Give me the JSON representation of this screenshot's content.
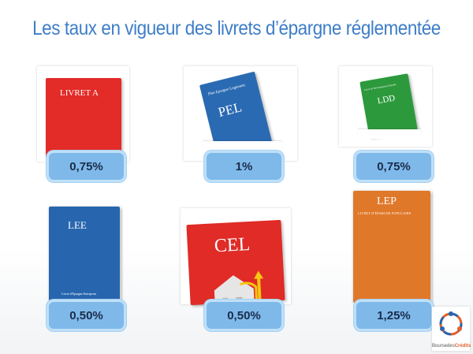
{
  "title": "Les taux en vigueur des livrets d’épargne réglementée",
  "products": [
    {
      "name": "LIVRET A",
      "rate": "0,75%",
      "color": "#e32b28"
    },
    {
      "name": "PEL",
      "subtitle": "Plan Epargne Logement",
      "rate": "1%",
      "color": "#2a6ab2"
    },
    {
      "name": "LDD",
      "subtitle": "Livret de Développement Durable",
      "rate": "0,75%",
      "color": "#2c9a3c"
    },
    {
      "name": "LEE",
      "subtitle": "Livret d'Epargne Entreprise",
      "rate": "0,50%",
      "color": "#2766ae"
    },
    {
      "name": "CEL",
      "rate": "0,50%",
      "color": "#e02b26"
    },
    {
      "name": "LEP",
      "subtitle": "LIVRET D'ÉPARGNE POPULAIRE",
      "rate": "1,25%",
      "color": "#e0782a"
    }
  ],
  "logo": {
    "text_a": "Bourse",
    "text_b": "des",
    "text_c": "Crédits"
  }
}
